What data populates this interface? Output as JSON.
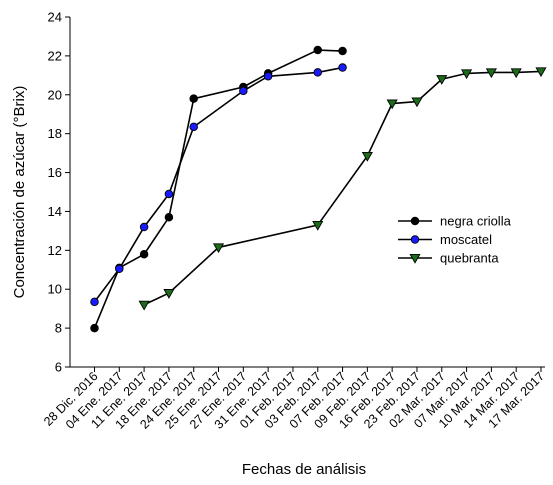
{
  "chart_data": {
    "type": "line",
    "title": "",
    "xlabel": "Fechas de análisis",
    "ylabel": "Concentración de azúcar (°Brix)",
    "ylim": [
      6,
      24
    ],
    "yticks": [
      6,
      8,
      10,
      12,
      14,
      16,
      18,
      20,
      22,
      24
    ],
    "grid": false,
    "legend_position": "right",
    "categories": [
      "28 Dic. 2016",
      "04 Ene. 2017",
      "11 Ene. 2017",
      "18 Ene. 2017",
      "24 Ene. 2017",
      "25 Ene. 2017",
      "27 Ene. 2017",
      "31 Ene. 2017",
      "01 Feb. 2017",
      "03 Feb. 2017",
      "07 Feb. 2017",
      "09 Feb. 2017",
      "16 Feb. 2017",
      "23 Feb. 2017",
      "02 Mar. 2017",
      "07 Mar. 2017",
      "10 Mar. 2017",
      "14 Mar. 2017",
      "17 Mar. 2017"
    ],
    "series": [
      {
        "name": "negra criolla",
        "marker": "circle",
        "color": "#000000",
        "points": [
          {
            "x": 0,
            "y": 8.0
          },
          {
            "x": 1,
            "y": 11.1
          },
          {
            "x": 2,
            "y": 11.8
          },
          {
            "x": 3,
            "y": 13.7
          },
          {
            "x": 4,
            "y": 19.8
          },
          {
            "x": 6,
            "y": 20.4
          },
          {
            "x": 7,
            "y": 21.1
          },
          {
            "x": 9,
            "y": 22.3
          },
          {
            "x": 10,
            "y": 22.25
          }
        ]
      },
      {
        "name": "moscatel",
        "marker": "circle",
        "color": "#1a1aff",
        "points": [
          {
            "x": 0,
            "y": 9.35
          },
          {
            "x": 1,
            "y": 11.05
          },
          {
            "x": 2,
            "y": 13.2
          },
          {
            "x": 3,
            "y": 14.9
          },
          {
            "x": 4,
            "y": 18.35
          },
          {
            "x": 6,
            "y": 20.2
          },
          {
            "x": 7,
            "y": 20.95
          },
          {
            "x": 9,
            "y": 21.15
          },
          {
            "x": 10,
            "y": 21.4
          }
        ]
      },
      {
        "name": "quebranta",
        "marker": "triangle-down",
        "color": "#1a6b1a",
        "points": [
          {
            "x": 2,
            "y": 9.2
          },
          {
            "x": 3,
            "y": 9.8
          },
          {
            "x": 5,
            "y": 12.15
          },
          {
            "x": 9,
            "y": 13.3
          },
          {
            "x": 11,
            "y": 16.85
          },
          {
            "x": 12,
            "y": 19.55
          },
          {
            "x": 13,
            "y": 19.65
          },
          {
            "x": 14,
            "y": 20.8
          },
          {
            "x": 15,
            "y": 21.1
          },
          {
            "x": 16,
            "y": 21.15
          },
          {
            "x": 17,
            "y": 21.15
          },
          {
            "x": 18,
            "y": 21.2
          }
        ]
      }
    ]
  }
}
